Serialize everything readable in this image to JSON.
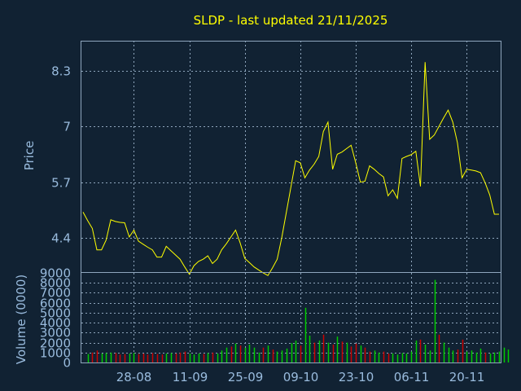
{
  "chart_data": [
    {
      "type": "line",
      "title": "SLDP - last updated 21/11/2025",
      "ylabel": "Price",
      "ylim": [
        3.6,
        9.0
      ],
      "yticks": [
        "4.4",
        "5.7",
        "7",
        "8.3"
      ],
      "xticks": [
        "28-08",
        "11-09",
        "25-09",
        "09-10",
        "23-10",
        "06-11",
        "20-11"
      ],
      "color": "#ffff00",
      "values": [
        5.0,
        4.8,
        4.62,
        4.12,
        4.12,
        4.35,
        4.82,
        4.78,
        4.76,
        4.75,
        4.42,
        4.58,
        4.32,
        4.25,
        4.18,
        4.12,
        3.95,
        3.95,
        4.2,
        4.1,
        4.0,
        3.9,
        3.72,
        3.55,
        3.75,
        3.85,
        3.9,
        3.98,
        3.8,
        3.9,
        4.12,
        4.26,
        4.42,
        4.58,
        4.28,
        3.92,
        3.82,
        3.72,
        3.65,
        3.58,
        3.52,
        3.7,
        3.9,
        4.4,
        5.0,
        5.6,
        6.2,
        6.15,
        5.8,
        5.98,
        6.12,
        6.3,
        6.88,
        7.1,
        6.0,
        6.35,
        6.4,
        6.48,
        6.56,
        6.15,
        5.7,
        5.72,
        6.08,
        6.0,
        5.9,
        5.82,
        5.38,
        5.52,
        5.32,
        6.25,
        6.3,
        6.34,
        6.42,
        5.6,
        8.5,
        6.7,
        6.8,
        7.0,
        7.2,
        7.38,
        7.1,
        6.62,
        5.8,
        6.0,
        5.98,
        5.96,
        5.92,
        5.68,
        5.4,
        4.95,
        4.95
      ]
    },
    {
      "type": "bar",
      "ylabel": "Volume (0000)",
      "ylim": [
        0,
        9000
      ],
      "yticks": [
        "0",
        "1000",
        "2000",
        "3000",
        "4000",
        "5000",
        "6000",
        "7000",
        "8000",
        "9000"
      ],
      "series": [
        {
          "color": "#00cc00",
          "bars": [
            [
              1,
              850
            ],
            [
              4,
              900
            ],
            [
              5,
              950
            ],
            [
              6,
              1000
            ],
            [
              10,
              900
            ],
            [
              11,
              950
            ],
            [
              18,
              900
            ],
            [
              19,
              950
            ],
            [
              23,
              900
            ],
            [
              24,
              800
            ],
            [
              25,
              900
            ],
            [
              27,
              950
            ],
            [
              29,
              900
            ],
            [
              30,
              1200
            ],
            [
              31,
              1500
            ],
            [
              33,
              1900
            ],
            [
              35,
              1500
            ],
            [
              36,
              1800
            ],
            [
              37,
              1500
            ],
            [
              38,
              1000
            ],
            [
              40,
              1700
            ],
            [
              42,
              1100
            ],
            [
              43,
              1200
            ],
            [
              44,
              1400
            ],
            [
              45,
              1950
            ],
            [
              46,
              2200
            ],
            [
              48,
              5500
            ],
            [
              49,
              2700
            ],
            [
              51,
              2200
            ],
            [
              53,
              2000
            ],
            [
              55,
              2600
            ],
            [
              57,
              2000
            ],
            [
              60,
              1700
            ],
            [
              63,
              1200
            ],
            [
              64,
              1000
            ],
            [
              67,
              900
            ],
            [
              68,
              800
            ],
            [
              69,
              950
            ],
            [
              70,
              900
            ],
            [
              71,
              1100
            ],
            [
              72,
              2200
            ],
            [
              74,
              1800
            ],
            [
              75,
              1200
            ],
            [
              76,
              8300
            ],
            [
              78,
              2000
            ],
            [
              79,
              1500
            ],
            [
              80,
              1200
            ],
            [
              83,
              1100
            ],
            [
              84,
              1200
            ],
            [
              85,
              1000
            ],
            [
              86,
              1400
            ],
            [
              88,
              900
            ],
            [
              89,
              1000
            ],
            [
              90,
              1100
            ],
            [
              91,
              1500
            ],
            [
              92,
              1300
            ]
          ]
        },
        {
          "color": "#cc0000",
          "bars": [
            [
              2,
              1000
            ],
            [
              3,
              1200
            ],
            [
              7,
              950
            ],
            [
              8,
              800
            ],
            [
              9,
              850
            ],
            [
              12,
              850
            ],
            [
              13,
              900
            ],
            [
              14,
              800
            ],
            [
              15,
              950
            ],
            [
              16,
              850
            ],
            [
              17,
              800
            ],
            [
              20,
              900
            ],
            [
              21,
              1000
            ],
            [
              22,
              1100
            ],
            [
              26,
              850
            ],
            [
              28,
              1000
            ],
            [
              32,
              1600
            ],
            [
              34,
              1700
            ],
            [
              39,
              1500
            ],
            [
              41,
              1300
            ],
            [
              47,
              1700
            ],
            [
              50,
              2000
            ],
            [
              52,
              2800
            ],
            [
              54,
              1800
            ],
            [
              56,
              2100
            ],
            [
              58,
              1600
            ],
            [
              59,
              1900
            ],
            [
              61,
              1500
            ],
            [
              62,
              1100
            ],
            [
              65,
              1100
            ],
            [
              66,
              900
            ],
            [
              73,
              2300
            ],
            [
              77,
              2800
            ],
            [
              81,
              1300
            ],
            [
              82,
              2300
            ],
            [
              87,
              1000
            ]
          ]
        }
      ]
    }
  ]
}
